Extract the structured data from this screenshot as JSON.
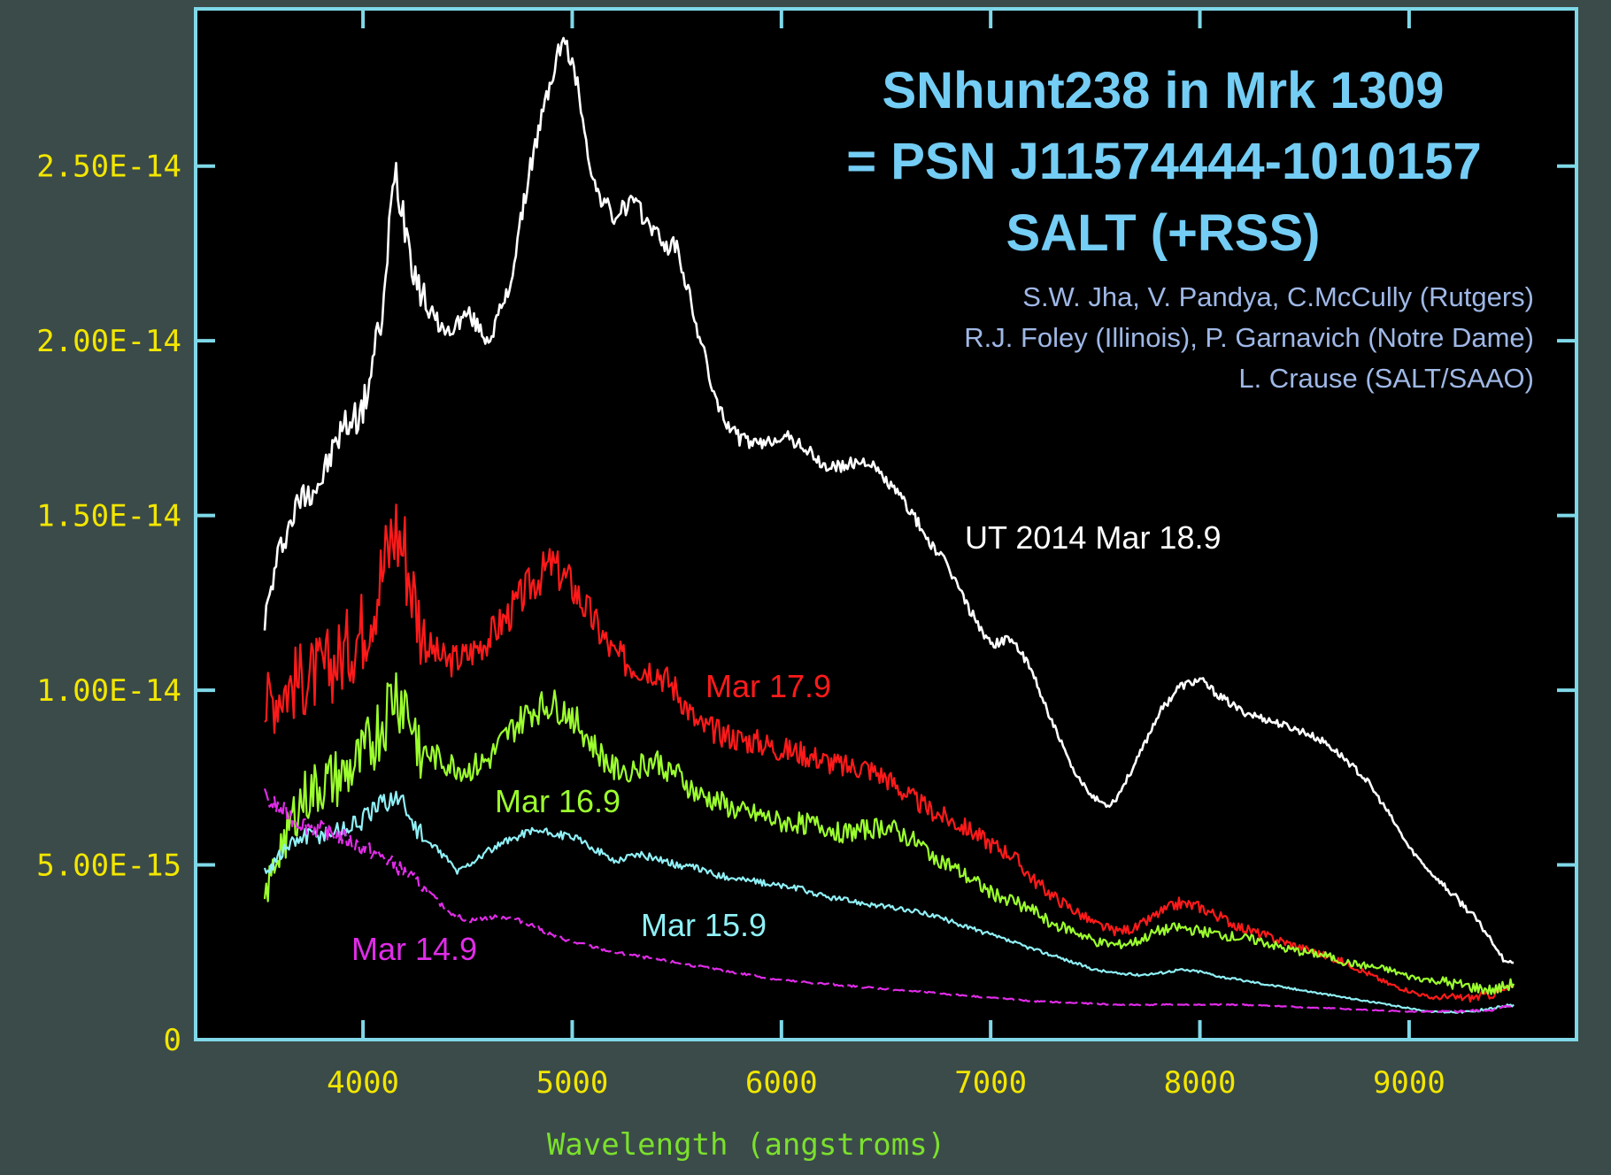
{
  "chart_data": {
    "type": "line",
    "title": "SNhunt238 in Mrk 1309",
    "subtitle": "= PSN J11574444-1010157",
    "instrument": "SALT (+RSS)",
    "credits": [
      "S.W. Jha, V. Pandya, C.McCully (Rutgers)",
      "R.J. Foley (Illinois), P. Garnavich (Notre Dame)",
      "L. Crause (SALT/SAAO)"
    ],
    "xlabel": "Wavelength (angstroms)",
    "ylabel": "",
    "xlim": [
      3200,
      9800
    ],
    "ylim": [
      0,
      2.95e-14
    ],
    "x_tick_values": [
      4000,
      5000,
      6000,
      7000,
      8000,
      9000
    ],
    "x_tick_labels": [
      "4000",
      "5000",
      "6000",
      "7000",
      "8000",
      "9000"
    ],
    "y_tick_values": [
      0,
      5e-15,
      1e-14,
      1.5e-14,
      2e-14,
      2.5e-14
    ],
    "y_tick_labels": [
      "0",
      "5.00E-15",
      "1.00E-14",
      "1.50E-14",
      "2.00E-14",
      "2.50E-14"
    ],
    "grid": false,
    "background": "#000000",
    "axis_color": "#7fd8e8",
    "series": [
      {
        "name": "UT 2014 Mar 18.9",
        "color": "#ffffff",
        "x": [
          3530,
          3600,
          3700,
          3800,
          3900,
          4000,
          4100,
          4150,
          4200,
          4250,
          4300,
          4400,
          4500,
          4600,
          4700,
          4800,
          4900,
          4950,
          5000,
          5050,
          5100,
          5200,
          5280,
          5350,
          5450,
          5500,
          5600,
          5700,
          5800,
          5900,
          6000,
          6100,
          6200,
          6300,
          6400,
          6500,
          6600,
          6700,
          6800,
          6900,
          7000,
          7100,
          7200,
          7300,
          7400,
          7500,
          7560,
          7600,
          7700,
          7800,
          7900,
          8000,
          8100,
          8200,
          8300,
          8400,
          8500,
          8600,
          8700,
          8800,
          8900,
          9000,
          9100,
          9200,
          9300,
          9400,
          9450,
          9500
        ],
        "y": [
          1.2e-14,
          1.4e-14,
          1.55e-14,
          1.6e-14,
          1.75e-14,
          1.8e-14,
          2.1e-14,
          2.5e-14,
          2.35e-14,
          2.2e-14,
          2.1e-14,
          2.02e-14,
          2.08e-14,
          2e-14,
          2.15e-14,
          2.5e-14,
          2.75e-14,
          2.86e-14,
          2.8e-14,
          2.65e-14,
          2.45e-14,
          2.35e-14,
          2.4e-14,
          2.35e-14,
          2.27e-14,
          2.27e-14,
          2.03e-14,
          1.8e-14,
          1.72e-14,
          1.7e-14,
          1.73e-14,
          1.7e-14,
          1.64e-14,
          1.64e-14,
          1.66e-14,
          1.6e-14,
          1.53e-14,
          1.43e-14,
          1.35e-14,
          1.23e-14,
          1.13e-14,
          1.15e-14,
          1.05e-14,
          9e-15,
          7.6e-15,
          6.9e-15,
          6.7e-15,
          6.9e-15,
          8e-15,
          9.3e-15,
          1.01e-14,
          1.03e-14,
          9.8e-15,
          9.4e-15,
          9.2e-15,
          9e-15,
          8.8e-15,
          8.5e-15,
          8e-15,
          7.4e-15,
          6.5e-15,
          5.5e-15,
          4.8e-15,
          4.2e-15,
          3.6e-15,
          2.8e-15,
          2.3e-15,
          2.2e-15
        ]
      },
      {
        "name": "Mar 17.9",
        "color": "#ff1a1a",
        "x": [
          3530,
          3600,
          3700,
          3800,
          3900,
          4000,
          4100,
          4150,
          4200,
          4250,
          4300,
          4400,
          4500,
          4600,
          4700,
          4800,
          4900,
          5000,
          5100,
          5200,
          5300,
          5400,
          5500,
          5600,
          5700,
          5800,
          5900,
          6000,
          6100,
          6200,
          6300,
          6400,
          6500,
          6600,
          6700,
          6800,
          6900,
          7000,
          7100,
          7200,
          7300,
          7400,
          7500,
          7600,
          7700,
          7800,
          7900,
          8000,
          8100,
          8200,
          8300,
          8400,
          8500,
          8600,
          8700,
          8800,
          8900,
          9000,
          9100,
          9200,
          9300,
          9400,
          9500
        ],
        "y": [
          9.5e-15,
          1e-14,
          1.03e-14,
          1.05e-14,
          1.1e-14,
          1.18e-14,
          1.35e-14,
          1.47e-14,
          1.4e-14,
          1.25e-14,
          1.13e-14,
          1.08e-14,
          1.1e-14,
          1.15e-14,
          1.22e-14,
          1.3e-14,
          1.36e-14,
          1.3e-14,
          1.2e-14,
          1.1e-14,
          1.07e-14,
          1.06e-14,
          1e-14,
          9e-15,
          8.8e-15,
          8.6e-15,
          8.5e-15,
          8.3e-15,
          8.2e-15,
          8e-15,
          7.8e-15,
          7.8e-15,
          7.5e-15,
          7e-15,
          6.6e-15,
          6.3e-15,
          6e-15,
          5.6e-15,
          5.3e-15,
          4.6e-15,
          4.1e-15,
          3.7e-15,
          3.3e-15,
          3.1e-15,
          3.2e-15,
          3.6e-15,
          3.9e-15,
          3.8e-15,
          3.5e-15,
          3.2e-15,
          3e-15,
          2.8e-15,
          2.6e-15,
          2.4e-15,
          2.2e-15,
          1.9e-15,
          1.6e-15,
          1.4e-15,
          1.2e-15,
          1.2e-15,
          1.2e-15,
          1.3e-15,
          1.5e-15
        ]
      },
      {
        "name": "Mar 16.9",
        "color": "#9cff2e",
        "x": [
          3530,
          3600,
          3700,
          3800,
          3900,
          4000,
          4100,
          4150,
          4200,
          4250,
          4300,
          4400,
          4500,
          4600,
          4700,
          4800,
          4900,
          5000,
          5100,
          5200,
          5300,
          5400,
          5500,
          5600,
          5700,
          5800,
          5900,
          6000,
          6100,
          6200,
          6300,
          6400,
          6500,
          6600,
          6700,
          6800,
          6900,
          7000,
          7100,
          7200,
          7300,
          7400,
          7500,
          7600,
          7700,
          7800,
          7900,
          8000,
          8100,
          8200,
          8300,
          8400,
          8500,
          8600,
          8700,
          8800,
          8900,
          9000,
          9100,
          9200,
          9300,
          9400,
          9500
        ],
        "y": [
          4e-15,
          5.5e-15,
          6.8e-15,
          7.3e-15,
          7.5e-15,
          8e-15,
          9.2e-15,
          1e-14,
          9.7e-15,
          8.8e-15,
          8.2e-15,
          7.9e-15,
          7.7e-15,
          8e-15,
          8.8e-15,
          9.4e-15,
          9.6e-15,
          9.3e-15,
          8.4e-15,
          7.7e-15,
          7.8e-15,
          8e-15,
          7.6e-15,
          7e-15,
          6.8e-15,
          6.5e-15,
          6.4e-15,
          6.2e-15,
          6.2e-15,
          6.1e-15,
          5.9e-15,
          6e-15,
          6.1e-15,
          5.8e-15,
          5.4e-15,
          5e-15,
          4.6e-15,
          4.2e-15,
          4e-15,
          3.7e-15,
          3.3e-15,
          3.1e-15,
          2.8e-15,
          2.7e-15,
          2.8e-15,
          3.1e-15,
          3.2e-15,
          3.1e-15,
          3e-15,
          2.9e-15,
          2.8e-15,
          2.6e-15,
          2.5e-15,
          2.4e-15,
          2.2e-15,
          2.1e-15,
          2e-15,
          1.8e-15,
          1.7e-15,
          1.6e-15,
          1.5e-15,
          1.4e-15,
          1.6e-15
        ]
      },
      {
        "name": "Mar 15.9",
        "color": "#8ff0f6",
        "x": [
          3530,
          3600,
          3700,
          3800,
          3900,
          4000,
          4100,
          4150,
          4200,
          4250,
          4300,
          4400,
          4450,
          4500,
          4600,
          4700,
          4800,
          4900,
          5000,
          5100,
          5200,
          5300,
          5400,
          5500,
          5600,
          5700,
          5800,
          5900,
          6000,
          6100,
          6200,
          6300,
          6400,
          6500,
          6600,
          6700,
          6800,
          6900,
          7000,
          7100,
          7200,
          7300,
          7400,
          7500,
          7600,
          7700,
          7800,
          7900,
          8000,
          8100,
          8200,
          8300,
          8400,
          8500,
          8600,
          8700,
          8800,
          8900,
          9000,
          9100,
          9200,
          9300,
          9400,
          9500
        ],
        "y": [
          4.8e-15,
          5.3e-15,
          5.8e-15,
          5.9e-15,
          6e-15,
          6.3e-15,
          6.8e-15,
          7e-15,
          6.7e-15,
          6.1e-15,
          5.7e-15,
          5.2e-15,
          4.8e-15,
          5e-15,
          5.4e-15,
          5.7e-15,
          6e-15,
          5.9e-15,
          5.8e-15,
          5.5e-15,
          5.1e-15,
          5.3e-15,
          5.2e-15,
          5e-15,
          4.9e-15,
          4.7e-15,
          4.6e-15,
          4.5e-15,
          4.4e-15,
          4.3e-15,
          4.1e-15,
          4e-15,
          3.9e-15,
          3.8e-15,
          3.7e-15,
          3.6e-15,
          3.4e-15,
          3.2e-15,
          3e-15,
          2.8e-15,
          2.6e-15,
          2.4e-15,
          2.2e-15,
          2e-15,
          1.9e-15,
          1.85e-15,
          1.9e-15,
          2e-15,
          1.95e-15,
          1.8e-15,
          1.7e-15,
          1.6e-15,
          1.5e-15,
          1.4e-15,
          1.3e-15,
          1.2e-15,
          1.1e-15,
          1e-15,
          9e-16,
          8e-16,
          8e-16,
          8e-16,
          9e-16,
          1e-15
        ]
      },
      {
        "name": "Mar 14.9",
        "color": "#e02ce8",
        "x": [
          3530,
          3600,
          3700,
          3800,
          3900,
          4000,
          4100,
          4200,
          4300,
          4400,
          4500,
          4600,
          4700,
          4800,
          4900,
          5000,
          5200,
          5400,
          5600,
          5800,
          6000,
          6200,
          6400,
          6600,
          6800,
          7000,
          7200,
          7400,
          7600,
          7800,
          8000,
          8200,
          8400,
          8600,
          8800,
          9000,
          9200,
          9400,
          9500
        ],
        "y": [
          6.9e-15,
          6.6e-15,
          6.2e-15,
          6e-15,
          5.8e-15,
          5.5e-15,
          5.2e-15,
          4.8e-15,
          4.3e-15,
          3.7e-15,
          3.4e-15,
          3.5e-15,
          3.5e-15,
          3.3e-15,
          3e-15,
          2.8e-15,
          2.5e-15,
          2.3e-15,
          2.1e-15,
          1.9e-15,
          1.7e-15,
          1.6e-15,
          1.5e-15,
          1.4e-15,
          1.3e-15,
          1.2e-15,
          1.1e-15,
          1.05e-15,
          1e-15,
          1e-15,
          1e-15,
          1e-15,
          9.5e-16,
          9e-16,
          8.5e-16,
          8e-16,
          8e-16,
          8.5e-16,
          1e-15
        ]
      }
    ]
  }
}
